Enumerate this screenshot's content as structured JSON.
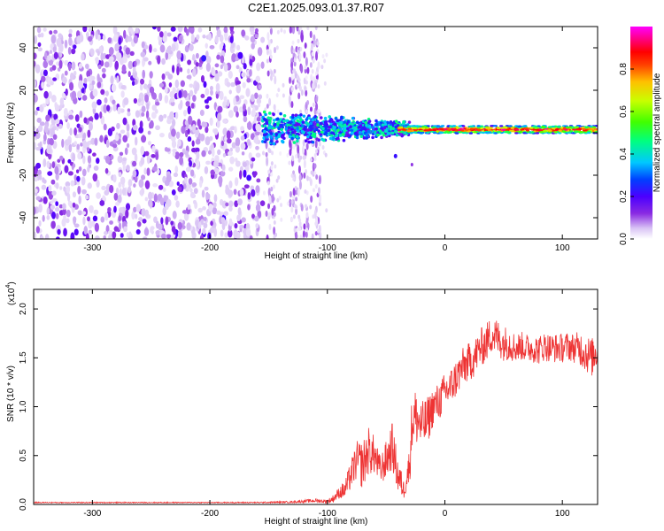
{
  "chart_data": [
    {
      "type": "heatmap",
      "title": "C2E1.2025.093.01.37.R07",
      "xlabel": "Height of straight line (km)",
      "ylabel": "Frequency (Hz)",
      "xlim": [
        -350,
        130
      ],
      "ylim": [
        -50,
        50
      ],
      "x_ticks": [
        -300,
        -200,
        -100,
        0,
        100
      ],
      "x_tick_labels": [
        "-300",
        "-200",
        "-100",
        "0",
        "100"
      ],
      "y_ticks": [
        -40,
        -20,
        0,
        20,
        40
      ],
      "y_tick_labels": [
        "-40",
        "-20",
        "0",
        "20",
        "40"
      ],
      "colorbar": {
        "label": "Normalized spectral amplitude",
        "range": [
          0,
          1
        ],
        "ticks": [
          0.0,
          0.2,
          0.4,
          0.6,
          0.8
        ],
        "tick_labels": [
          "0.0",
          "0.2",
          "0.4",
          "0.6",
          "0.8"
        ],
        "colormap": [
          "#ffffff",
          "#d9c4f5",
          "#8a2be2",
          "#4b00ff",
          "#0040ff",
          "#00c8ff",
          "#00ff80",
          "#40ff00",
          "#c8ff00",
          "#ffc000",
          "#ff4000",
          "#ff0000",
          "#ff0080",
          "#ff00ff"
        ]
      },
      "regions": [
        {
          "x_range": [
            -350,
            -155
          ],
          "f_range": [
            -50,
            50
          ],
          "amplitude": 0.12,
          "description": "broadband noise"
        },
        {
          "x_range": [
            -155,
            -100
          ],
          "f_range": [
            -50,
            50
          ],
          "amplitude": 0.06,
          "description": "sparse noise bands"
        },
        {
          "x_range": [
            -155,
            -30
          ],
          "f_range": [
            -5,
            10
          ],
          "amplitude": 0.3
        },
        {
          "x_range": [
            -30,
            130
          ],
          "f_range": [
            -1,
            4
          ],
          "amplitude": 0.85,
          "center_freq": 1.5
        }
      ]
    },
    {
      "type": "line",
      "xlabel": "Height of straight line (km)",
      "ylabel": "SNR (10 * v/v)",
      "y_scale_label": "(x10",
      "y_scale_exponent": "4",
      "xlim": [
        -350,
        130
      ],
      "ylim": [
        0,
        2.2
      ],
      "x_ticks": [
        -300,
        -200,
        -100,
        0,
        100
      ],
      "x_tick_labels": [
        "-300",
        "-200",
        "-100",
        "0",
        "100"
      ],
      "y_ticks": [
        0.0,
        0.5,
        1.0,
        1.5,
        2.0
      ],
      "y_tick_labels": [
        "0.0",
        "0.5",
        "1.0",
        "1.5",
        "2.0"
      ],
      "series": [
        {
          "name": "SNR",
          "color": "#ee3333",
          "x": [
            -350,
            -300,
            -250,
            -200,
            -160,
            -130,
            -110,
            -100,
            -95,
            -90,
            -85,
            -80,
            -75,
            -70,
            -65,
            -60,
            -55,
            -50,
            -45,
            -40,
            -35,
            -30,
            -28,
            -25,
            -20,
            -15,
            -10,
            -5,
            0,
            5,
            10,
            15,
            20,
            25,
            30,
            35,
            40,
            45,
            50,
            55,
            60,
            65,
            70,
            75,
            80,
            85,
            90,
            95,
            100,
            105,
            110,
            115,
            120,
            125,
            130
          ],
          "values": [
            0.02,
            0.02,
            0.02,
            0.02,
            0.02,
            0.025,
            0.04,
            0.03,
            0.06,
            0.12,
            0.15,
            0.3,
            0.45,
            0.4,
            0.55,
            0.5,
            0.35,
            0.45,
            0.6,
            0.3,
            0.15,
            0.4,
            0.85,
            0.9,
            0.8,
            0.85,
            1.0,
            1.05,
            1.15,
            1.2,
            1.3,
            1.4,
            1.45,
            1.5,
            1.6,
            1.65,
            1.75,
            1.7,
            1.65,
            1.65,
            1.6,
            1.62,
            1.6,
            1.6,
            1.58,
            1.62,
            1.6,
            1.6,
            1.6,
            1.62,
            1.6,
            1.6,
            1.55,
            1.5,
            1.6
          ],
          "noise_amplitude": [
            0.005,
            0.005,
            0.005,
            0.005,
            0.006,
            0.01,
            0.02,
            0.02,
            0.04,
            0.06,
            0.1,
            0.15,
            0.2,
            0.25,
            0.25,
            0.2,
            0.15,
            0.2,
            0.25,
            0.2,
            0.1,
            0.2,
            0.3,
            0.3,
            0.25,
            0.25,
            0.2,
            0.2,
            0.2,
            0.2,
            0.2,
            0.2,
            0.2,
            0.2,
            0.2,
            0.2,
            0.2,
            0.2,
            0.18,
            0.18,
            0.15,
            0.15,
            0.15,
            0.15,
            0.15,
            0.15,
            0.15,
            0.15,
            0.15,
            0.15,
            0.15,
            0.18,
            0.2,
            0.2,
            0.2
          ]
        }
      ]
    }
  ]
}
